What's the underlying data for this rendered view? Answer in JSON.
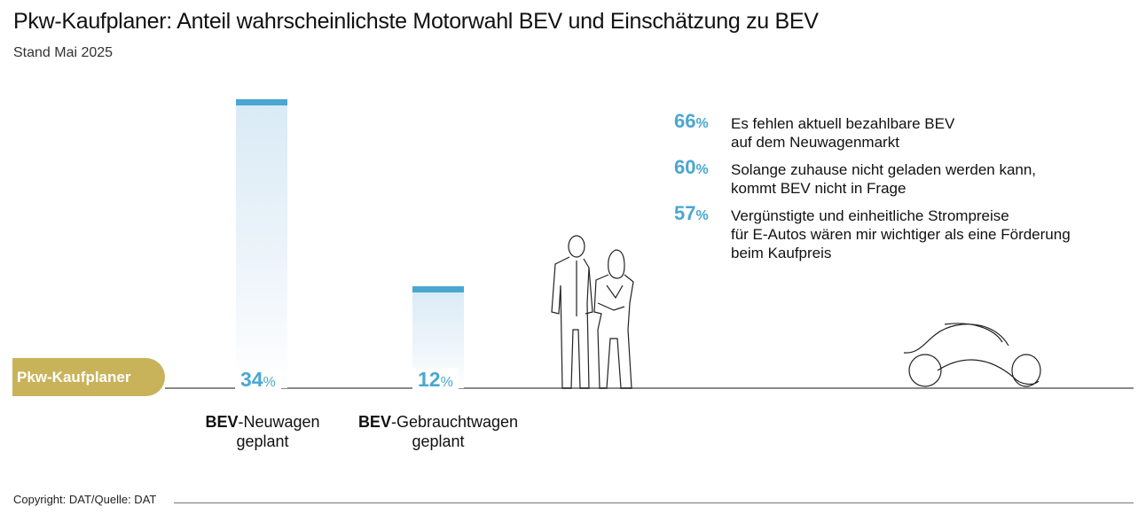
{
  "header": {
    "title": "Pkw-Kaufplaner: Anteil wahrscheinlichste Motorwahl BEV und Einschätzung zu BEV",
    "subtitle": "Stand Mai 2025"
  },
  "chart_data": {
    "type": "bar",
    "group_label": "Pkw-Kaufplaner",
    "categories": [
      {
        "bold": "BEV",
        "rest": "-Neuwagen",
        "line2": "geplant"
      },
      {
        "bold": "BEV",
        "rest": "-Gebrauchtwagen",
        "line2": "geplant"
      }
    ],
    "values": [
      34,
      12
    ],
    "value_labels": [
      "34",
      "12"
    ],
    "unit": "%",
    "colors": {
      "bar_cap": "#4aa7d1",
      "bar_fill": "#d9eaf5",
      "group_pill": "#c9b35a"
    }
  },
  "statements": [
    {
      "pct": "66",
      "unit": "%",
      "line1": "Es fehlen aktuell bezahlbare BEV",
      "line2": "auf dem Neuwagenmarkt"
    },
    {
      "pct": "60",
      "unit": "%",
      "line1": "Solange zuhause nicht geladen werden kann,",
      "line2": "kommt BEV nicht in Frage"
    },
    {
      "pct": "57",
      "unit": "%",
      "line1": "Vergünstigte und einheitliche Strompreise",
      "line2": "für E-Autos wären mir wichtiger als eine Förderung",
      "line3": "beim Kaufpreis"
    }
  ],
  "footer": {
    "copyright": "Copyright: DAT/Quelle: DAT"
  },
  "icons": [
    "people-illustration",
    "car-illustration"
  ]
}
